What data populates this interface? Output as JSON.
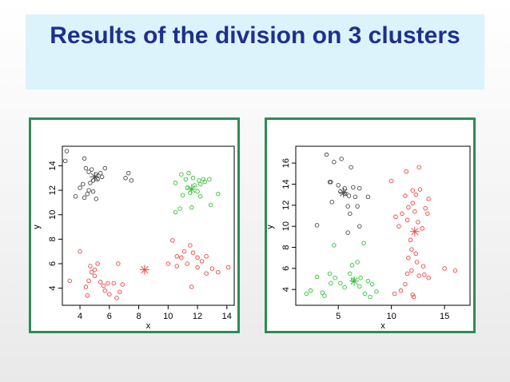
{
  "slide": {
    "title": "Results of the division on 3 clusters"
  },
  "colors": {
    "cluster_black": "#4a4a4a",
    "cluster_green": "#33c233",
    "cluster_red": "#ee4444",
    "panel_border": "#2e8b57",
    "title_text": "#1f2f8f",
    "title_background": "#dcf3fb"
  },
  "chart_data": [
    {
      "type": "scatter",
      "title": "",
      "xlabel": "x",
      "ylabel": "y",
      "xlim": [
        2.8,
        14.5
      ],
      "ylim": [
        2.6,
        15.6
      ],
      "xticks": [
        4,
        6,
        8,
        10,
        12,
        14
      ],
      "yticks": [
        4,
        6,
        8,
        10,
        12,
        14
      ],
      "grid": false,
      "legend": "none",
      "series": [
        {
          "color": "#4a4a4a",
          "marker": "circle",
          "points": [
            [
              3.1,
              15.2
            ],
            [
              3.0,
              14.4
            ],
            [
              4.3,
              14.6
            ],
            [
              4.4,
              13.8
            ],
            [
              4.6,
              13.5
            ],
            [
              4.8,
              13.7
            ],
            [
              5.1,
              13.3
            ],
            [
              5.4,
              13.4
            ],
            [
              5.7,
              13.8
            ],
            [
              5.5,
              13.1
            ],
            [
              5.2,
              12.9
            ],
            [
              4.9,
              12.8
            ],
            [
              4.7,
              12.6
            ],
            [
              4.2,
              12.5
            ],
            [
              4.0,
              12.2
            ],
            [
              4.6,
              12.0
            ],
            [
              4.5,
              11.7
            ],
            [
              4.3,
              11.4
            ],
            [
              5.1,
              11.3
            ],
            [
              3.7,
              11.5
            ],
            [
              4.9,
              11.9
            ],
            [
              7.3,
              13.4
            ],
            [
              7.5,
              12.8
            ],
            [
              7.1,
              13.0
            ]
          ],
          "centroids": [
            [
              5.0,
              13.1
            ]
          ]
        },
        {
          "color": "#33c233",
          "marker": "circle",
          "points": [
            [
              10.9,
              13.3
            ],
            [
              11.4,
              13.4
            ],
            [
              11.2,
              12.9
            ],
            [
              11.7,
              13.0
            ],
            [
              12.1,
              12.8
            ],
            [
              12.4,
              12.9
            ],
            [
              12.2,
              12.5
            ],
            [
              11.8,
              12.4
            ],
            [
              11.3,
              12.2
            ],
            [
              11.5,
              11.8
            ],
            [
              12.0,
              11.9
            ],
            [
              11.0,
              11.6
            ],
            [
              10.5,
              12.6
            ],
            [
              10.8,
              10.5
            ],
            [
              10.5,
              10.2
            ],
            [
              11.6,
              10.6
            ],
            [
              12.8,
              12.9
            ],
            [
              12.5,
              12.7
            ],
            [
              13.4,
              11.7
            ],
            [
              12.9,
              10.8
            ],
            [
              12.2,
              11.5
            ]
          ],
          "centroids": [
            [
              11.6,
              12.1
            ]
          ]
        },
        {
          "color": "#ee4444",
          "marker": "circle",
          "points": [
            [
              4.0,
              7.0
            ],
            [
              4.7,
              5.8
            ],
            [
              5.2,
              6.0
            ],
            [
              4.8,
              5.3
            ],
            [
              5.0,
              5.0
            ],
            [
              4.6,
              4.6
            ],
            [
              4.4,
              4.1
            ],
            [
              5.4,
              4.5
            ],
            [
              5.6,
              4.2
            ],
            [
              5.9,
              4.4
            ],
            [
              5.7,
              3.8
            ],
            [
              6.3,
              4.4
            ],
            [
              6.0,
              3.5
            ],
            [
              6.7,
              3.7
            ],
            [
              6.5,
              3.2
            ],
            [
              6.9,
              4.3
            ],
            [
              3.3,
              4.6
            ],
            [
              4.5,
              3.4
            ],
            [
              6.6,
              6.0
            ],
            [
              5.0,
              5.5
            ],
            [
              10.3,
              7.9
            ],
            [
              10.6,
              6.6
            ],
            [
              10.9,
              6.5
            ],
            [
              11.1,
              7.0
            ],
            [
              11.5,
              7.5
            ],
            [
              11.7,
              6.9
            ],
            [
              12.0,
              6.5
            ],
            [
              12.3,
              6.2
            ],
            [
              12.6,
              6.6
            ],
            [
              11.3,
              6.0
            ],
            [
              12.0,
              5.7
            ],
            [
              12.6,
              5.2
            ],
            [
              13.0,
              5.6
            ],
            [
              13.4,
              5.3
            ],
            [
              14.1,
              5.7
            ],
            [
              11.6,
              4.1
            ],
            [
              10.0,
              6.0
            ],
            [
              10.6,
              5.8
            ]
          ],
          "centroids": [
            [
              8.4,
              5.5
            ]
          ]
        }
      ]
    },
    {
      "type": "scatter",
      "title": "",
      "xlabel": "x",
      "ylabel": "y",
      "xlim": [
        1.0,
        17.4
      ],
      "ylim": [
        2.5,
        17.6
      ],
      "xticks": [
        5,
        10,
        15
      ],
      "yticks": [
        4,
        6,
        8,
        10,
        12,
        14,
        16
      ],
      "grid": false,
      "legend": "none",
      "series": [
        {
          "color": "#4a4a4a",
          "marker": "circle",
          "points": [
            [
              3.9,
              16.8
            ],
            [
              4.6,
              16.1
            ],
            [
              5.3,
              16.4
            ],
            [
              6.2,
              15.6
            ],
            [
              4.2,
              14.2
            ],
            [
              5.0,
              13.9
            ],
            [
              5.6,
              13.6
            ],
            [
              6.4,
              13.7
            ],
            [
              7.0,
              13.6
            ],
            [
              5.2,
              13.3
            ],
            [
              5.6,
              13.1
            ],
            [
              6.6,
              12.8
            ],
            [
              7.8,
              12.8
            ],
            [
              4.4,
              12.3
            ],
            [
              5.9,
              11.9
            ],
            [
              6.8,
              11.9
            ],
            [
              6.1,
              11.2
            ],
            [
              7.0,
              10.0
            ],
            [
              3.0,
              10.1
            ],
            [
              5.9,
              9.4
            ],
            [
              4.3,
              14.2
            ],
            [
              6.0,
              12.9
            ]
          ],
          "centroids": [
            [
              5.5,
              13.2
            ]
          ]
        },
        {
          "color": "#33c233",
          "marker": "circle",
          "points": [
            [
              2.0,
              3.6
            ],
            [
              2.4,
              3.9
            ],
            [
              3.5,
              3.7
            ],
            [
              3.7,
              3.4
            ],
            [
              4.3,
              4.6
            ],
            [
              4.2,
              5.5
            ],
            [
              3.0,
              5.2
            ],
            [
              4.7,
              5.1
            ],
            [
              5.2,
              4.6
            ],
            [
              5.6,
              4.2
            ],
            [
              6.4,
              4.9
            ],
            [
              6.3,
              6.3
            ],
            [
              6.8,
              6.6
            ],
            [
              7.1,
              5.1
            ],
            [
              7.0,
              4.3
            ],
            [
              7.5,
              3.6
            ],
            [
              8.0,
              3.3
            ],
            [
              8.2,
              4.5
            ],
            [
              7.8,
              4.8
            ],
            [
              8.6,
              3.8
            ],
            [
              7.4,
              8.4
            ],
            [
              4.6,
              8.2
            ],
            [
              6.1,
              5.5
            ]
          ],
          "centroids": [
            [
              6.5,
              4.8
            ]
          ]
        },
        {
          "color": "#ee4444",
          "marker": "circle",
          "points": [
            [
              10.0,
              14.3
            ],
            [
              11.4,
              15.2
            ],
            [
              12.6,
              15.6
            ],
            [
              12.0,
              13.4
            ],
            [
              12.3,
              13.0
            ],
            [
              12.7,
              13.5
            ],
            [
              11.3,
              12.9
            ],
            [
              13.5,
              12.6
            ],
            [
              12.0,
              12.2
            ],
            [
              11.6,
              11.8
            ],
            [
              12.2,
              11.4
            ],
            [
              11.0,
              11.2
            ],
            [
              10.4,
              10.9
            ],
            [
              11.5,
              10.6
            ],
            [
              12.5,
              10.4
            ],
            [
              13.2,
              11.7
            ],
            [
              13.4,
              11.2
            ],
            [
              12.9,
              9.8
            ],
            [
              10.7,
              10.0
            ],
            [
              11.8,
              8.7
            ],
            [
              11.9,
              7.8
            ],
            [
              12.3,
              7.4
            ],
            [
              11.6,
              7.0
            ],
            [
              12.4,
              6.6
            ],
            [
              13.0,
              6.2
            ],
            [
              11.9,
              5.8
            ],
            [
              11.5,
              5.5
            ],
            [
              13.1,
              5.4
            ],
            [
              12.6,
              5.3
            ],
            [
              13.5,
              5.1
            ],
            [
              15.0,
              6.0
            ],
            [
              16.0,
              5.8
            ],
            [
              11.3,
              4.5
            ],
            [
              10.9,
              3.9
            ],
            [
              12.0,
              3.5
            ],
            [
              12.1,
              3.3
            ],
            [
              10.3,
              3.6
            ]
          ],
          "centroids": [
            [
              12.2,
              9.5
            ]
          ]
        }
      ]
    }
  ]
}
